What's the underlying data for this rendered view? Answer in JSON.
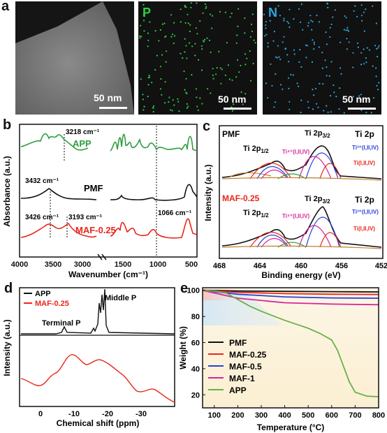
{
  "figure": {
    "panel_letters": {
      "a": "a",
      "b": "b",
      "c": "c",
      "d": "d",
      "e": "e"
    }
  },
  "panel_a": {
    "images": [
      {
        "element": "",
        "scale": "50 nm"
      },
      {
        "element": "P",
        "scale": "50 nm",
        "color": "#2ecc40"
      },
      {
        "element": "N",
        "scale": "50 nm",
        "color": "#27a9e1"
      }
    ]
  },
  "chart_data": [
    {
      "panel": "b",
      "type": "line",
      "xlabel": "Wavenumber (cm⁻¹)",
      "ylabel": "Absorbance (a.u.)",
      "x_ticks": [
        "4000",
        "3500",
        "3000",
        "1500",
        "1000",
        "500"
      ],
      "series": [
        {
          "name": "APP",
          "color": "#2e9e3f"
        },
        {
          "name": "PMF",
          "color": "#111111"
        },
        {
          "name": "MAF-0.25",
          "color": "#e8261b"
        }
      ],
      "annotations": [
        "3218 cm⁻¹",
        "3432 cm⁻¹",
        "3426 cm⁻¹",
        "3193 cm⁻¹",
        "1066 cm⁻¹"
      ]
    },
    {
      "panel": "c",
      "type": "line",
      "xlabel": "Binding energy (eV)",
      "ylabel": "Intensity (a.u.)",
      "x_ticks": [
        "468",
        "464",
        "460",
        "456",
        "452"
      ],
      "series": [
        {
          "name": "PMF"
        },
        {
          "name": "MAF-0.25"
        }
      ],
      "labels": {
        "ti2p12": "Ti 2p",
        "ti2p12_sub": "1/2",
        "ti2p32": "Ti 2p",
        "ti2p32_sub": "3/2",
        "ti2p": "Ti 2p",
        "ti3": "Ti³⁺(I,II,IV)",
        "ti4": "Ti⁴⁺(I,II,IV)",
        "ti": "Ti(I,II,IV)"
      }
    },
    {
      "panel": "d",
      "type": "line",
      "xlabel": "Chemical shift (ppm)",
      "ylabel": "Intensity (a.u.)",
      "x_ticks": [
        "0",
        "-10",
        "-20",
        "-30"
      ],
      "series": [
        {
          "name": "APP",
          "color": "#111111"
        },
        {
          "name": "MAF-0.25",
          "color": "#e8261b"
        }
      ],
      "annotations": [
        "Middle P",
        "Terminal P"
      ]
    },
    {
      "panel": "e",
      "type": "line",
      "xlabel": "Temperature (°C)",
      "ylabel": "Weight (%)",
      "x_ticks": [
        "100",
        "200",
        "300",
        "400",
        "500",
        "600",
        "700",
        "800"
      ],
      "y_ticks": [
        "20",
        "40",
        "60",
        "80",
        "100"
      ],
      "xlim": [
        50,
        800
      ],
      "ylim": [
        10,
        102
      ],
      "series": [
        {
          "name": "PMF",
          "color": "#111111",
          "x": [
            50,
            200,
            400,
            600,
            800
          ],
          "y": [
            100,
            99.5,
            99.2,
            99,
            98.8
          ]
        },
        {
          "name": "MAF-0.25",
          "color": "#e8261b",
          "x": [
            50,
            200,
            400,
            600,
            800
          ],
          "y": [
            100,
            98.5,
            97.5,
            97,
            96.8
          ]
        },
        {
          "name": "MAF-0.5",
          "color": "#2e3fd8",
          "x": [
            50,
            200,
            400,
            600,
            800
          ],
          "y": [
            100,
            97,
            95,
            94.2,
            94
          ]
        },
        {
          "name": "MAF-1",
          "color": "#d6249a",
          "x": [
            50,
            200,
            400,
            600,
            800
          ],
          "y": [
            100,
            94,
            90.5,
            89.5,
            89
          ]
        },
        {
          "name": "APP",
          "color": "#6ab04c",
          "x": [
            50,
            100,
            150,
            200,
            250,
            300,
            350,
            400,
            450,
            500,
            550,
            600,
            625,
            650,
            675,
            700,
            750,
            800
          ],
          "y": [
            100,
            99.5,
            98,
            93,
            88,
            84,
            80.5,
            77,
            74,
            71,
            67,
            62,
            54,
            42,
            30,
            22,
            19,
            18.5
          ]
        }
      ]
    }
  ]
}
